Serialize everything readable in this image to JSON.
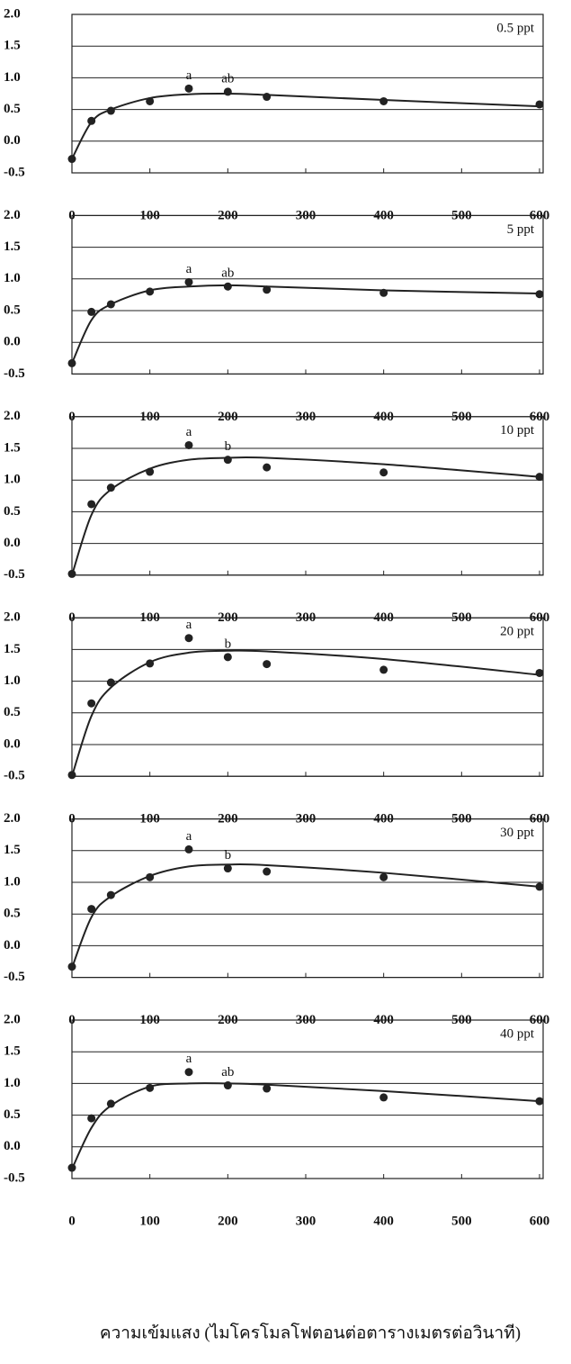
{
  "chart_data": [
    {
      "type": "scatter",
      "title": "0.5 ppt",
      "x": [
        0,
        25,
        50,
        100,
        150,
        200,
        250,
        400,
        600
      ],
      "series": [
        {
          "color": "#222222",
          "values": [
            -0.28,
            0.32,
            0.48,
            0.63,
            0.83,
            0.78,
            0.7,
            0.63,
            0.58
          ]
        },
        {
          "color": "#222222",
          "line": true,
          "values": [
            -0.28,
            0.3,
            0.5,
            0.68,
            0.74,
            0.75,
            0.73,
            0.65,
            0.55
          ]
        }
      ],
      "annotations": [
        {
          "text": "a",
          "x": 150
        },
        {
          "text": "ab",
          "x": 200
        }
      ],
      "xlim": [
        0,
        600
      ],
      "ylim": [
        -0.5,
        2
      ],
      "xticks": [
        0,
        100,
        200,
        300,
        400,
        500,
        600
      ],
      "yticks": [
        {
          "value": -0.5,
          "label": "-0.5"
        },
        {
          "value": 0,
          "label": "0.0"
        },
        {
          "value": 0.5,
          "label": "0.5"
        },
        {
          "value": 1,
          "label": "1.0"
        },
        {
          "value": 1.5,
          "label": "1.5"
        },
        {
          "value": 2,
          "label": "2.0"
        }
      ],
      "grid": true
    },
    {
      "type": "scatter",
      "title": "5 ppt",
      "x": [
        0,
        25,
        50,
        100,
        150,
        200,
        250,
        400,
        600
      ],
      "series": [
        {
          "color": "#222222",
          "values": [
            -0.33,
            0.48,
            0.6,
            0.8,
            0.95,
            0.88,
            0.83,
            0.78,
            0.76
          ]
        },
        {
          "color": "#222222",
          "line": true,
          "values": [
            -0.33,
            0.35,
            0.6,
            0.82,
            0.88,
            0.9,
            0.88,
            0.82,
            0.77
          ]
        }
      ],
      "annotations": [
        {
          "text": "a",
          "x": 150
        },
        {
          "text": "ab",
          "x": 200
        }
      ],
      "xlim": [
        0,
        600
      ],
      "ylim": [
        -0.5,
        2
      ],
      "xticks": [
        0,
        100,
        200,
        300,
        400,
        500,
        600
      ],
      "yticks": [
        {
          "value": -0.5,
          "label": "-0.5"
        },
        {
          "value": 0,
          "label": "0.0"
        },
        {
          "value": 0.5,
          "label": "0.5"
        },
        {
          "value": 1,
          "label": "1.0"
        },
        {
          "value": 1.5,
          "label": "1.5"
        },
        {
          "value": 2,
          "label": "2.0"
        }
      ],
      "grid": true
    },
    {
      "type": "scatter",
      "title": "10 ppt",
      "x": [
        0,
        25,
        50,
        100,
        150,
        200,
        250,
        400,
        600
      ],
      "series": [
        {
          "color": "#222222",
          "values": [
            -0.48,
            0.62,
            0.88,
            1.13,
            1.55,
            1.32,
            1.2,
            1.12,
            1.05
          ]
        },
        {
          "color": "#222222",
          "line": true,
          "values": [
            -0.5,
            0.45,
            0.85,
            1.18,
            1.32,
            1.35,
            1.35,
            1.25,
            1.05
          ]
        }
      ],
      "annotations": [
        {
          "text": "a",
          "x": 150
        },
        {
          "text": "b",
          "x": 200
        }
      ],
      "xlim": [
        0,
        600
      ],
      "ylim": [
        -0.5,
        2
      ],
      "xticks": [
        0,
        100,
        200,
        300,
        400,
        500,
        600
      ],
      "yticks": [
        {
          "value": -0.5,
          "label": "-0.5"
        },
        {
          "value": 0,
          "label": "0.0"
        },
        {
          "value": 0.5,
          "label": "0.5"
        },
        {
          "value": 1,
          "label": "1.0"
        },
        {
          "value": 1.5,
          "label": "1.5"
        },
        {
          "value": 2,
          "label": "2.0"
        }
      ],
      "grid": true
    },
    {
      "type": "scatter",
      "title": "20 ppt",
      "x": [
        0,
        25,
        50,
        100,
        150,
        200,
        250,
        400,
        600
      ],
      "series": [
        {
          "color": "#222222",
          "values": [
            -0.48,
            0.65,
            0.98,
            1.28,
            1.68,
            1.38,
            1.27,
            1.18,
            1.13
          ]
        },
        {
          "color": "#222222",
          "line": true,
          "values": [
            -0.5,
            0.45,
            0.9,
            1.3,
            1.45,
            1.48,
            1.47,
            1.35,
            1.1
          ]
        }
      ],
      "annotations": [
        {
          "text": "a",
          "x": 150
        },
        {
          "text": "b",
          "x": 200
        }
      ],
      "xlim": [
        0,
        600
      ],
      "ylim": [
        -0.5,
        2
      ],
      "xticks": [
        0,
        100,
        200,
        300,
        400,
        500,
        600
      ],
      "yticks": [
        {
          "value": -0.5,
          "label": "-0.5"
        },
        {
          "value": 0,
          "label": "0.0"
        },
        {
          "value": 0.5,
          "label": "0.5"
        },
        {
          "value": 1,
          "label": "1.0"
        },
        {
          "value": 1.5,
          "label": "1.5"
        },
        {
          "value": 2,
          "label": "2.0"
        }
      ],
      "grid": true
    },
    {
      "type": "scatter",
      "title": "30 ppt",
      "x": [
        0,
        25,
        50,
        100,
        150,
        200,
        250,
        400,
        600
      ],
      "series": [
        {
          "color": "#222222",
          "values": [
            -0.33,
            0.58,
            0.8,
            1.08,
            1.52,
            1.22,
            1.17,
            1.08,
            0.93
          ]
        },
        {
          "color": "#222222",
          "line": true,
          "values": [
            -0.35,
            0.45,
            0.78,
            1.1,
            1.25,
            1.28,
            1.27,
            1.15,
            0.93
          ]
        }
      ],
      "annotations": [
        {
          "text": "a",
          "x": 150
        },
        {
          "text": "b",
          "x": 200
        }
      ],
      "xlim": [
        0,
        600
      ],
      "ylim": [
        -0.5,
        2
      ],
      "xticks": [
        0,
        100,
        200,
        300,
        400,
        500,
        600
      ],
      "yticks": [
        {
          "value": -0.5,
          "label": "-0.5"
        },
        {
          "value": 0,
          "label": "0.0"
        },
        {
          "value": 0.5,
          "label": "0.5"
        },
        {
          "value": 1,
          "label": "1.0"
        },
        {
          "value": 1.5,
          "label": "1.5"
        },
        {
          "value": 2,
          "label": "2.0"
        }
      ],
      "grid": true
    },
    {
      "type": "scatter",
      "title": "40 ppt",
      "x": [
        0,
        25,
        50,
        100,
        150,
        200,
        250,
        400,
        600
      ],
      "series": [
        {
          "color": "#222222",
          "values": [
            -0.33,
            0.45,
            0.68,
            0.93,
            1.18,
            0.97,
            0.92,
            0.78,
            0.72
          ]
        },
        {
          "color": "#222222",
          "line": true,
          "values": [
            -0.35,
            0.3,
            0.65,
            0.95,
            1.0,
            1.0,
            0.98,
            0.88,
            0.72
          ]
        }
      ],
      "annotations": [
        {
          "text": "a",
          "x": 150
        },
        {
          "text": "ab",
          "x": 200
        }
      ],
      "xlabel": "ความเข้มแสง (ไมโครโมลโฟตอนต่อตารางเมตรต่อวินาที)",
      "xlim": [
        0,
        600
      ],
      "ylim": [
        -0.5,
        2
      ],
      "xticks": [
        0,
        100,
        200,
        300,
        400,
        500,
        600
      ],
      "yticks": [
        {
          "value": -0.5,
          "label": "-0.5"
        },
        {
          "value": 0,
          "label": "0.0"
        },
        {
          "value": 0.5,
          "label": "0.5"
        },
        {
          "value": 1,
          "label": "1.0"
        },
        {
          "value": 1.5,
          "label": "1.5"
        },
        {
          "value": 2,
          "label": "2.0"
        }
      ],
      "grid": true
    }
  ]
}
